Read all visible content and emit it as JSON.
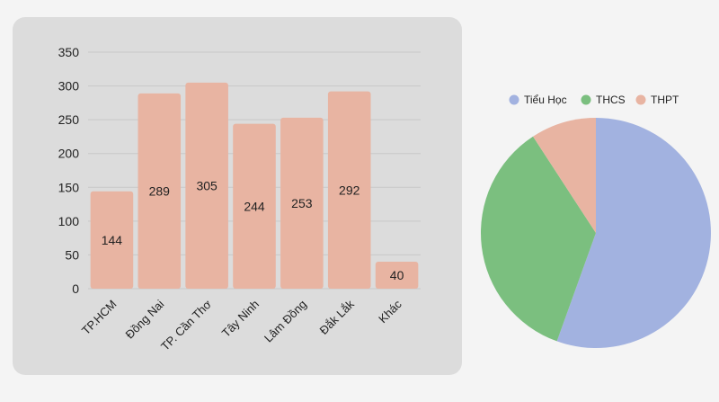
{
  "chart_data": [
    {
      "type": "bar",
      "title": "",
      "xlabel": "",
      "ylabel": "",
      "categories": [
        "TP.HCM",
        "Đồng Nai",
        "TP. Cần Thơ",
        "Tây Ninh",
        "Lâm Đồng",
        "Đắk Lắk",
        "Khác"
      ],
      "values": [
        144,
        289,
        305,
        244,
        253,
        292,
        40
      ],
      "data_labels": [
        "144",
        "289",
        "305",
        "244",
        "253",
        "292",
        "40"
      ],
      "ylim": [
        0,
        350
      ],
      "yticks": [
        0,
        50,
        100,
        150,
        200,
        250,
        300,
        350
      ],
      "ytick_labels": [
        "0",
        "50",
        "100",
        "150",
        "200",
        "250",
        "300",
        "350"
      ],
      "grid": true,
      "legend": null,
      "bar_color": "#e8b4a2"
    },
    {
      "type": "pie",
      "title": "",
      "labels": [
        "Tiểu Học",
        "THCS",
        "THPT"
      ],
      "values_percent_estimated": [
        55.5,
        35.3,
        9.2
      ],
      "colors": [
        "#a2b2e0",
        "#7bbf7f",
        "#e8b4a2"
      ],
      "legend_position": "top",
      "start_angle": "12 o'clock, clockwise"
    }
  ],
  "bar_chart": {
    "yticks": [
      "0",
      "50",
      "100",
      "150",
      "200",
      "250",
      "300",
      "350"
    ],
    "bars": [
      {
        "label": "TP.HCM",
        "value": 144,
        "text": "144"
      },
      {
        "label": "Đồng Nai",
        "value": 289,
        "text": "289"
      },
      {
        "label": "TP. Cần Thơ",
        "value": 305,
        "text": "305"
      },
      {
        "label": "Tây Ninh",
        "value": 244,
        "text": "244"
      },
      {
        "label": "Lâm Đồng",
        "value": 253,
        "text": "253"
      },
      {
        "label": "Đắk Lắk",
        "value": 292,
        "text": "292"
      },
      {
        "label": "Khác",
        "value": 40,
        "text": "40"
      }
    ]
  },
  "pie_chart": {
    "legend": [
      {
        "label": "Tiểu Học",
        "color": "#a2b2e0"
      },
      {
        "label": "THCS",
        "color": "#7bbf7f"
      },
      {
        "label": "THPT",
        "color": "#e8b4a2"
      }
    ],
    "slices": [
      55.5,
      35.3,
      9.2
    ]
  },
  "colors": {
    "bar": "#e8b4a2",
    "grid": "#c8c8c8",
    "text": "#222222",
    "card_bg": "#dcdcdc",
    "page_bg": "#f4f4f4"
  }
}
